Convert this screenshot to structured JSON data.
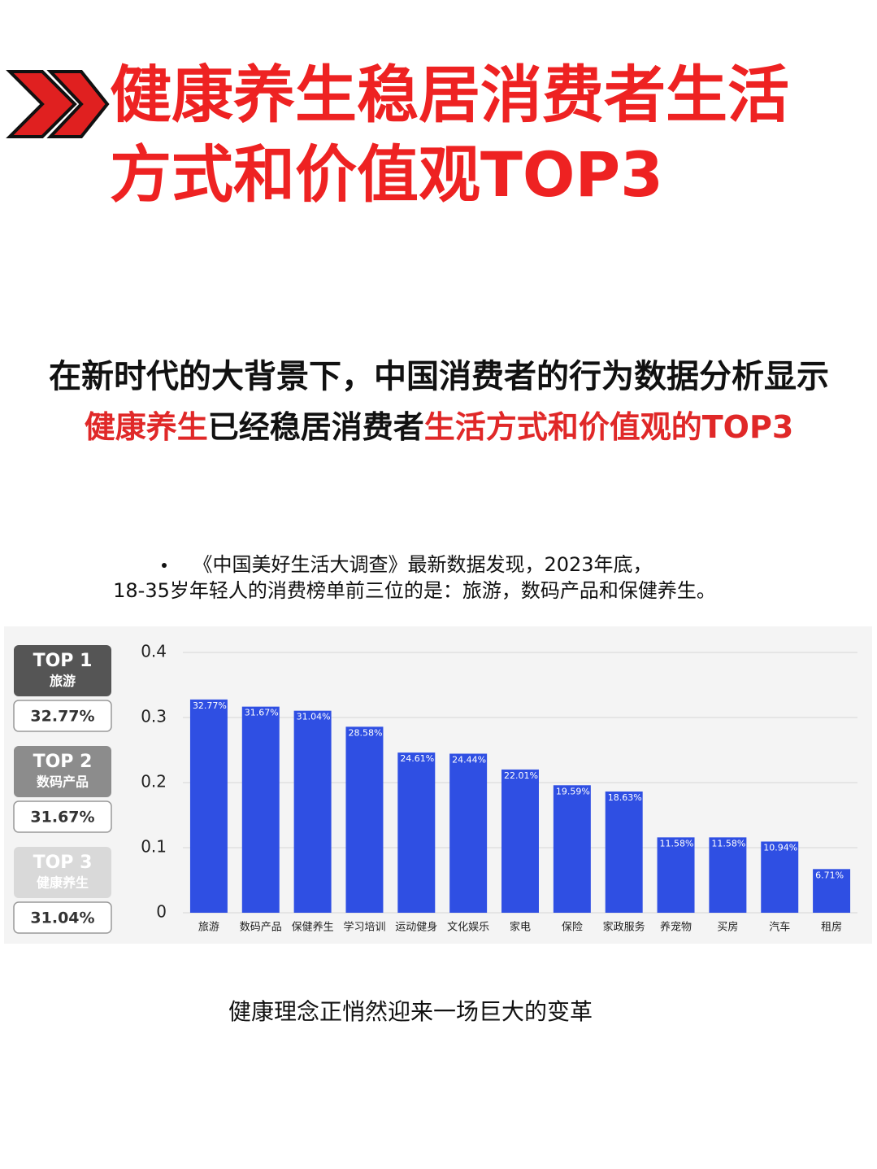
{
  "title_lines": [
    "健康养生稳居消费者生活",
    "方式和价值观TOP3"
  ],
  "intro": {
    "line1": "在新时代的大背景下，中国消费者的行为数据分析显示",
    "line2": [
      {
        "text": "健康养生",
        "highlight": true
      },
      {
        "text": "已经稳居消费者",
        "highlight": false
      },
      {
        "text": "生活方式和价值观的TOP3",
        "highlight": true
      }
    ]
  },
  "source_note": [
    "《中国美好生活大调查》最新数据发现，2023年底，",
    "18-35岁年轻人的消费榜单前三位的是：旅游，数码产品和保健养生。"
  ],
  "ranking": [
    {
      "rank": "TOP 1",
      "name": "旅游",
      "share": "32.77%",
      "color": "#555555"
    },
    {
      "rank": "TOP 2",
      "name": "数码产品",
      "share": "31.67%",
      "color": "#8c8c8c"
    },
    {
      "rank": "TOP 3",
      "name": "健康养生",
      "share": "31.04%",
      "color": "#d9d9d9"
    }
  ],
  "chart_data": {
    "type": "bar",
    "categories": [
      "旅游",
      "数码产品",
      "保健养生",
      "学习培训",
      "运动健身",
      "文化娱乐",
      "家电",
      "保险",
      "家政服务",
      "养宠物",
      "买房",
      "汽车",
      "租房"
    ],
    "values": [
      0.3277,
      0.3167,
      0.3104,
      0.2858,
      0.2461,
      0.2444,
      0.2201,
      0.1959,
      0.1863,
      0.1158,
      0.1158,
      0.1094,
      0.0671
    ],
    "value_labels": [
      "32.77%",
      "31.67%",
      "31.04%",
      "28.58%",
      "24.61%",
      "24.44%",
      "22.01%",
      "19.59%",
      "18.63%",
      "11.58%",
      "11.58%",
      "10.94%",
      "6.71%"
    ],
    "color": "#2f4fe3",
    "ylim": [
      0,
      0.4
    ],
    "yticks": [
      0,
      0.1,
      0.2,
      0.3,
      0.4
    ],
    "grid": true
  },
  "footer": "健康理念正悄然迎来一场巨大的变革"
}
